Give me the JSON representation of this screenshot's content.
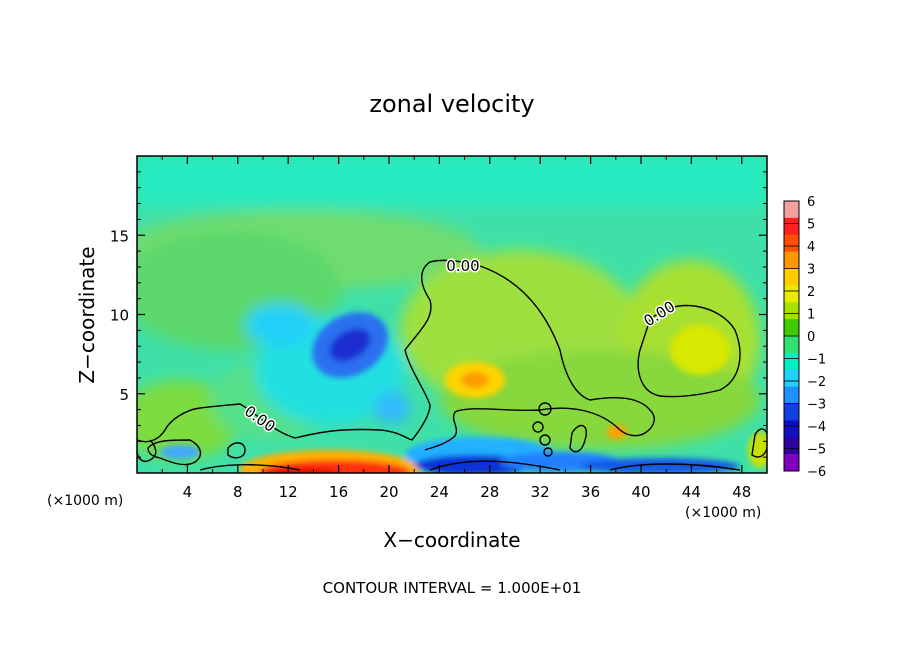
{
  "chart_data": {
    "type": "heatmap",
    "title": "zonal velocity",
    "xlabel": "X−coordinate",
    "ylabel": "Z−coordinate",
    "x_unit_left": "(×1000 m)",
    "x_unit_right": "(×1000 m)",
    "footer": "CONTOUR INTERVAL = 1.000E+01",
    "xlim": [
      0,
      50
    ],
    "ylim": [
      0,
      20
    ],
    "x_ticks": [
      4,
      8,
      12,
      16,
      20,
      24,
      28,
      32,
      36,
      40,
      44,
      48
    ],
    "y_ticks": [
      5,
      10,
      15
    ],
    "colorbar": {
      "ticks": [
        "6",
        "5",
        "4",
        "3",
        "2",
        "1",
        "0",
        "−1",
        "−2",
        "−3",
        "−4",
        "−5",
        "−6"
      ],
      "range": [
        -6,
        6
      ],
      "colors": [
        "#f4a0a0",
        "#ff2020",
        "#ff5000",
        "#ff9800",
        "#ffcc00",
        "#e8ea00",
        "#a8e000",
        "#3ccc00",
        "#30e070",
        "#00f0c0",
        "#20d0ff",
        "#2090ff",
        "#1040e0",
        "#1010c0",
        "#3000a0",
        "#8000c0"
      ]
    },
    "contour_labels": [
      "0.00",
      "0.00",
      "0.00"
    ],
    "features": [
      {
        "x": 17,
        "z": 7.5,
        "value": -4
      },
      {
        "x": 11,
        "z": 9,
        "value": -2
      },
      {
        "x": 19.5,
        "z": 4,
        "value": -2
      },
      {
        "x": 17,
        "z": 0.5,
        "value": 5
      },
      {
        "x": 27,
        "z": 5.5,
        "value": 3
      },
      {
        "x": 43,
        "z": 7.5,
        "value": 2
      },
      {
        "x": 26,
        "z": 0.8,
        "value": -4
      },
      {
        "x": 38,
        "z": 2.5,
        "value": 2
      }
    ]
  }
}
